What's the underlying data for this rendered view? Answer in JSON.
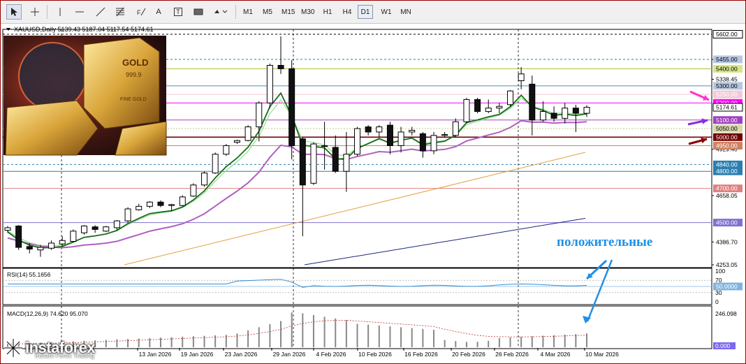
{
  "toolbar": {
    "tools": [
      {
        "name": "cursor-tool",
        "icon": "cursor-arrow-icon"
      },
      {
        "name": "crosshair-tool",
        "icon": "crosshair-icon"
      },
      {
        "name": "vertical-line-tool",
        "icon": "vertical-line-icon"
      },
      {
        "name": "horizontal-line-tool",
        "icon": "horizontal-line-icon"
      },
      {
        "name": "trendline-tool",
        "icon": "trendline-icon"
      },
      {
        "name": "fibonacci-tool",
        "icon": "fibonacci-icon"
      },
      {
        "name": "text-tool",
        "label": "A"
      },
      {
        "name": "text-label-tool",
        "label": "T"
      },
      {
        "name": "rectangle-tool",
        "icon": "rectangle-icon"
      },
      {
        "name": "shapes-tool",
        "icon": "shapes-dropdown-icon"
      }
    ],
    "timeframes": [
      "M1",
      "M5",
      "M15",
      "M30",
      "H1",
      "H4",
      "D1",
      "W1",
      "MN"
    ],
    "active_timeframe": "D1"
  },
  "header": {
    "symbol_line": "XAUUSD,Daily",
    "ohlc": "5139.43 5187.04 5117.54 5174.61"
  },
  "price_scale": {
    "ticks": [
      "5455.00",
      "5338.45",
      "4929.40",
      "4658.05",
      "4386.70",
      "4253.05"
    ],
    "tags": [
      {
        "label": "5602.00",
        "bg": "#ffffff",
        "fg": "#000000",
        "border": "#000000",
        "price": 5602
      },
      {
        "label": "5455.00",
        "bg": "#b7c7e0",
        "fg": "#000000",
        "price": 5455
      },
      {
        "label": "5400.00",
        "bg": "#d6e68a",
        "fg": "#000000",
        "price": 5400
      },
      {
        "label": "5300.00",
        "bg": "#b7c7e0",
        "fg": "#000000",
        "price": 5300
      },
      {
        "label": "5250.00",
        "bg": "#f4c8d8",
        "fg": "#ffffff",
        "price": 5250
      },
      {
        "label": "5200.00",
        "bg": "#ff00ff",
        "fg": "#ffffff",
        "price": 5200
      },
      {
        "label": "5174.61",
        "bg": "#ffffff",
        "fg": "#000000",
        "border": "#000000",
        "price": 5174.61
      },
      {
        "label": "5100.00",
        "bg": "#a040c0",
        "fg": "#ffffff",
        "price": 5100
      },
      {
        "label": "5050.00",
        "bg": "#d8d8a8",
        "fg": "#000000",
        "price": 5050
      },
      {
        "label": "5000.00",
        "bg": "#700000",
        "fg": "#ffffff",
        "price": 5000
      },
      {
        "label": "4950.00",
        "bg": "#d08060",
        "fg": "#ffffff",
        "price": 4950
      },
      {
        "label": "4840.00",
        "bg": "#2a7fb0",
        "fg": "#ffffff",
        "price": 4840
      },
      {
        "label": "4800.00",
        "bg": "#2a7fb0",
        "fg": "#ffffff",
        "price": 4800
      },
      {
        "label": "4700.00",
        "bg": "#e08080",
        "fg": "#ffffff",
        "price": 4700
      },
      {
        "label": "4500.00",
        "bg": "#8070d0",
        "fg": "#ffffff",
        "price": 4500
      }
    ]
  },
  "date_axis": [
    "13 Jan 2026",
    "19 Jan 2026",
    "23 Jan 2026",
    "29 Jan 2026",
    "4 Feb 2026",
    "10 Feb 2026",
    "16 Feb 2026",
    "20 Feb 2026",
    "26 Feb 2026",
    "4 Mar 2026",
    "10 Mar 2026"
  ],
  "annotation": {
    "text": "положительные",
    "color": "#1e90e8"
  },
  "rsi": {
    "label": "RSI(14) 55.1656",
    "levels": [
      "100",
      "70",
      "30",
      "0"
    ],
    "value_tag": "50.0000"
  },
  "macd": {
    "label": "MACD(12,26,9) 74.620 95.070",
    "top_tick": "246.098",
    "bottom_tag": "0.000"
  },
  "logo": {
    "name": "instaforex",
    "tagline": "Instant Forex Trading"
  },
  "ad_image": {
    "gold_text_1": "GOLD",
    "gold_text_2": "999.9",
    "gold_text_3": "FINE GOLD"
  },
  "colors": {
    "bull": "#ffffff",
    "bear": "#111111",
    "ma_fast": "#1c6b1c",
    "ma_light": "#90e090",
    "ma_purple": "#b060c0",
    "ma_orange": "#e0a040",
    "ma_navy": "#1a237e"
  },
  "chart_data": {
    "type": "candlestick",
    "symbol": "XAUUSD",
    "timeframe": "Daily",
    "ylim": [
      4253.05,
      5602
    ],
    "candles": [
      {
        "o": 4455,
        "c": 4470,
        "h": 4480,
        "l": 4440
      },
      {
        "o": 4480,
        "c": 4355,
        "h": 4485,
        "l": 4340
      },
      {
        "o": 4360,
        "c": 4345,
        "h": 4380,
        "l": 4320
      },
      {
        "o": 4340,
        "c": 4355,
        "h": 4370,
        "l": 4300
      },
      {
        "o": 4350,
        "c": 4380,
        "h": 4395,
        "l": 4340
      },
      {
        "o": 4375,
        "c": 4395,
        "h": 4420,
        "l": 4360
      },
      {
        "o": 4390,
        "c": 4450,
        "h": 4460,
        "l": 4385
      },
      {
        "o": 4440,
        "c": 4480,
        "h": 4485,
        "l": 4430
      },
      {
        "o": 4475,
        "c": 4460,
        "h": 4485,
        "l": 4440
      },
      {
        "o": 4450,
        "c": 4475,
        "h": 4480,
        "l": 4445
      },
      {
        "o": 4470,
        "c": 4510,
        "h": 4515,
        "l": 4455
      },
      {
        "o": 4510,
        "c": 4580,
        "h": 4590,
        "l": 4500
      },
      {
        "o": 4575,
        "c": 4595,
        "h": 4610,
        "l": 4570
      },
      {
        "o": 4595,
        "c": 4620,
        "h": 4625,
        "l": 4585
      },
      {
        "o": 4620,
        "c": 4600,
        "h": 4630,
        "l": 4590
      },
      {
        "o": 4600,
        "c": 4605,
        "h": 4610,
        "l": 4570
      },
      {
        "o": 4600,
        "c": 4650,
        "h": 4660,
        "l": 4595
      },
      {
        "o": 4655,
        "c": 4720,
        "h": 4730,
        "l": 4650
      },
      {
        "o": 4720,
        "c": 4790,
        "h": 4800,
        "l": 4710
      },
      {
        "o": 4790,
        "c": 4900,
        "h": 4910,
        "l": 4785
      },
      {
        "o": 4900,
        "c": 4950,
        "h": 4960,
        "l": 4890
      },
      {
        "o": 4970,
        "c": 4980,
        "h": 4985,
        "l": 4960
      },
      {
        "o": 4980,
        "c": 5060,
        "h": 5070,
        "l": 4975
      },
      {
        "o": 5060,
        "c": 5200,
        "h": 5210,
        "l": 4975
      },
      {
        "o": 5200,
        "c": 5420,
        "h": 5430,
        "l": 5170
      },
      {
        "o": 5420,
        "c": 5400,
        "h": 5590,
        "l": 5370
      },
      {
        "o": 5400,
        "c": 4950,
        "h": 5450,
        "l": 4870
      },
      {
        "o": 4990,
        "c": 4720,
        "h": 5000,
        "l": 4420
      },
      {
        "o": 4730,
        "c": 4960,
        "h": 4970,
        "l": 4720
      },
      {
        "o": 4950,
        "c": 4950,
        "h": 5090,
        "l": 4810
      },
      {
        "o": 4940,
        "c": 4800,
        "h": 5010,
        "l": 4790
      },
      {
        "o": 4800,
        "c": 4900,
        "h": 5030,
        "l": 4680
      },
      {
        "o": 4900,
        "c": 5050,
        "h": 5060,
        "l": 4890
      },
      {
        "o": 5060,
        "c": 5030,
        "h": 5070,
        "l": 5010
      },
      {
        "o": 5030,
        "c": 5060,
        "h": 5070,
        "l": 5000
      },
      {
        "o": 5070,
        "c": 4950,
        "h": 5090,
        "l": 4900
      },
      {
        "o": 4950,
        "c": 5030,
        "h": 5060,
        "l": 4910
      },
      {
        "o": 5030,
        "c": 5040,
        "h": 5060,
        "l": 5010
      },
      {
        "o": 5020,
        "c": 4920,
        "h": 5030,
        "l": 4880
      },
      {
        "o": 4920,
        "c": 5010,
        "h": 5030,
        "l": 4900
      },
      {
        "o": 5010,
        "c": 5015,
        "h": 5030,
        "l": 5000
      },
      {
        "o": 5010,
        "c": 5090,
        "h": 5110,
        "l": 5000
      },
      {
        "o": 5090,
        "c": 5220,
        "h": 5230,
        "l": 5080
      },
      {
        "o": 5220,
        "c": 5150,
        "h": 5230,
        "l": 5140
      },
      {
        "o": 5150,
        "c": 5170,
        "h": 5220,
        "l": 5140
      },
      {
        "o": 5170,
        "c": 5180,
        "h": 5200,
        "l": 5140
      },
      {
        "o": 5190,
        "c": 5270,
        "h": 5275,
        "l": 5180
      },
      {
        "o": 5330,
        "c": 5370,
        "h": 5410,
        "l": 5280
      },
      {
        "o": 5310,
        "c": 5100,
        "h": 5360,
        "l": 5010
      },
      {
        "o": 5100,
        "c": 5150,
        "h": 5210,
        "l": 5090
      },
      {
        "o": 5140,
        "c": 5110,
        "h": 5180,
        "l": 5090
      },
      {
        "o": 5110,
        "c": 5170,
        "h": 5200,
        "l": 5080
      },
      {
        "o": 5170,
        "c": 5140,
        "h": 5190,
        "l": 5030
      },
      {
        "o": 5139.43,
        "c": 5174.61,
        "h": 5187.04,
        "l": 5117.54
      }
    ],
    "levels": [
      5602,
      5455,
      5400,
      5300,
      5250,
      5200,
      5100,
      5050,
      5000,
      4950,
      4840,
      4800,
      4700,
      4500
    ]
  }
}
